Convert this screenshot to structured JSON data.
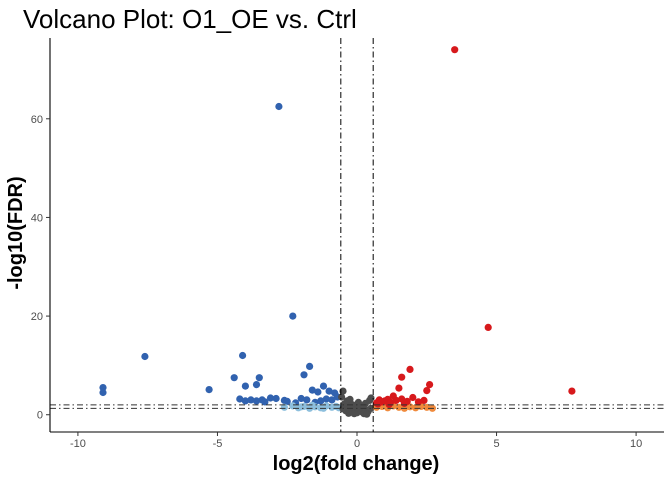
{
  "chart_data": {
    "type": "scatter",
    "title": "Volcano Plot: O1_OE vs. Ctrl",
    "xlabel": "log2(fold change)",
    "ylabel": "-log10(FDR)",
    "xlim": [
      -11,
      11
    ],
    "ylim": [
      -3.5,
      78
    ],
    "x_ticks": [
      -10,
      -5,
      0,
      5,
      10
    ],
    "y_ticks": [
      0,
      20,
      40,
      60
    ],
    "grid": false,
    "legend": "none",
    "thresholds": {
      "vertical_lines_x": [
        -0.58,
        0.58
      ],
      "horizontal_lines_y": [
        1.3,
        2.0
      ]
    },
    "series": [
      {
        "color": "#3162AF",
        "points": [
          [
            -2.8,
            62.5
          ],
          [
            -2.3,
            20.0
          ],
          [
            -7.6,
            11.8
          ],
          [
            -4.1,
            12.0
          ],
          [
            -9.1,
            5.5
          ],
          [
            -9.1,
            4.5
          ],
          [
            -5.3,
            5.1
          ],
          [
            -4.4,
            7.5
          ],
          [
            -3.5,
            7.5
          ],
          [
            -4.0,
            5.8
          ],
          [
            -3.6,
            6.1
          ],
          [
            -1.7,
            9.8
          ],
          [
            -1.9,
            8.1
          ],
          [
            -1.2,
            5.8
          ],
          [
            -1.6,
            5.0
          ],
          [
            -1.4,
            4.6
          ],
          [
            -1.0,
            4.8
          ],
          [
            -0.8,
            4.4
          ],
          [
            -0.7,
            3.6
          ],
          [
            -4.2,
            3.2
          ],
          [
            -4.0,
            2.8
          ],
          [
            -3.8,
            3.0
          ],
          [
            -3.6,
            2.8
          ],
          [
            -3.4,
            3.0
          ],
          [
            -3.3,
            2.6
          ],
          [
            -3.1,
            3.4
          ],
          [
            -2.9,
            3.3
          ],
          [
            -2.6,
            2.9
          ],
          [
            -2.5,
            2.7
          ],
          [
            -2.2,
            2.4
          ],
          [
            -2.0,
            3.3
          ],
          [
            -1.8,
            3.0
          ],
          [
            -1.5,
            2.5
          ],
          [
            -1.3,
            2.8
          ],
          [
            -1.1,
            3.2
          ],
          [
            -0.9,
            3.0
          ]
        ]
      },
      {
        "color": "#8DBFDD",
        "points": [
          [
            -2.6,
            1.5
          ],
          [
            -2.3,
            1.8
          ],
          [
            -2.1,
            1.4
          ],
          [
            -1.9,
            1.7
          ],
          [
            -1.7,
            1.3
          ],
          [
            -1.5,
            1.6
          ],
          [
            -1.3,
            1.4
          ],
          [
            -1.1,
            1.8
          ],
          [
            -0.9,
            1.5
          ],
          [
            -0.75,
            1.7
          ],
          [
            -0.65,
            1.4
          ],
          [
            -1.6,
            1.9
          ],
          [
            -2.0,
            1.6
          ],
          [
            -1.2,
            1.3
          ]
        ]
      },
      {
        "color": "#4D4D4D",
        "points": [
          [
            -0.5,
            1.2
          ],
          [
            -0.4,
            0.8
          ],
          [
            -0.3,
            1.5
          ],
          [
            -0.2,
            0.6
          ],
          [
            -0.1,
            1.0
          ],
          [
            0.0,
            0.4
          ],
          [
            0.1,
            0.9
          ],
          [
            0.2,
            0.5
          ],
          [
            0.3,
            1.1
          ],
          [
            0.4,
            0.7
          ],
          [
            0.5,
            1.3
          ],
          [
            -0.45,
            2.2
          ],
          [
            -0.35,
            2.8
          ],
          [
            -0.25,
            3.1
          ],
          [
            -0.15,
            2.0
          ],
          [
            0.05,
            2.5
          ],
          [
            0.15,
            1.8
          ],
          [
            0.3,
            2.3
          ],
          [
            0.45,
            2.9
          ],
          [
            0.5,
            3.4
          ],
          [
            -0.55,
            3.6
          ],
          [
            -0.5,
            4.8
          ],
          [
            -0.3,
            0.3
          ],
          [
            0.25,
            0.2
          ],
          [
            0.0,
            1.6
          ],
          [
            -0.1,
            0.2
          ],
          [
            0.35,
            0.1
          ],
          [
            -0.2,
            1.9
          ]
        ]
      },
      {
        "color": "#F08A3C",
        "points": [
          [
            0.7,
            1.5
          ],
          [
            0.9,
            1.7
          ],
          [
            1.1,
            1.4
          ],
          [
            1.3,
            1.8
          ],
          [
            1.5,
            1.5
          ],
          [
            1.7,
            1.3
          ],
          [
            1.9,
            1.6
          ],
          [
            2.1,
            1.4
          ],
          [
            2.3,
            1.7
          ],
          [
            2.5,
            1.5
          ],
          [
            2.7,
            1.3
          ],
          [
            1.0,
            1.9
          ]
        ]
      },
      {
        "color": "#D7191C",
        "points": [
          [
            3.5,
            74.0
          ],
          [
            4.7,
            17.7
          ],
          [
            7.7,
            4.8
          ],
          [
            1.9,
            9.2
          ],
          [
            1.6,
            7.6
          ],
          [
            1.5,
            5.4
          ],
          [
            2.5,
            4.9
          ],
          [
            2.6,
            6.1
          ],
          [
            0.7,
            2.4
          ],
          [
            0.8,
            3.0
          ],
          [
            0.9,
            2.6
          ],
          [
            1.0,
            2.8
          ],
          [
            1.1,
            3.1
          ],
          [
            1.2,
            2.5
          ],
          [
            1.3,
            3.8
          ],
          [
            1.4,
            2.9
          ],
          [
            1.6,
            3.2
          ],
          [
            1.8,
            2.7
          ],
          [
            2.0,
            3.5
          ],
          [
            2.2,
            2.6
          ],
          [
            2.4,
            2.9
          ],
          [
            1.7,
            2.3
          ],
          [
            0.75,
            2.2
          ],
          [
            1.15,
            2.1
          ]
        ]
      }
    ]
  }
}
